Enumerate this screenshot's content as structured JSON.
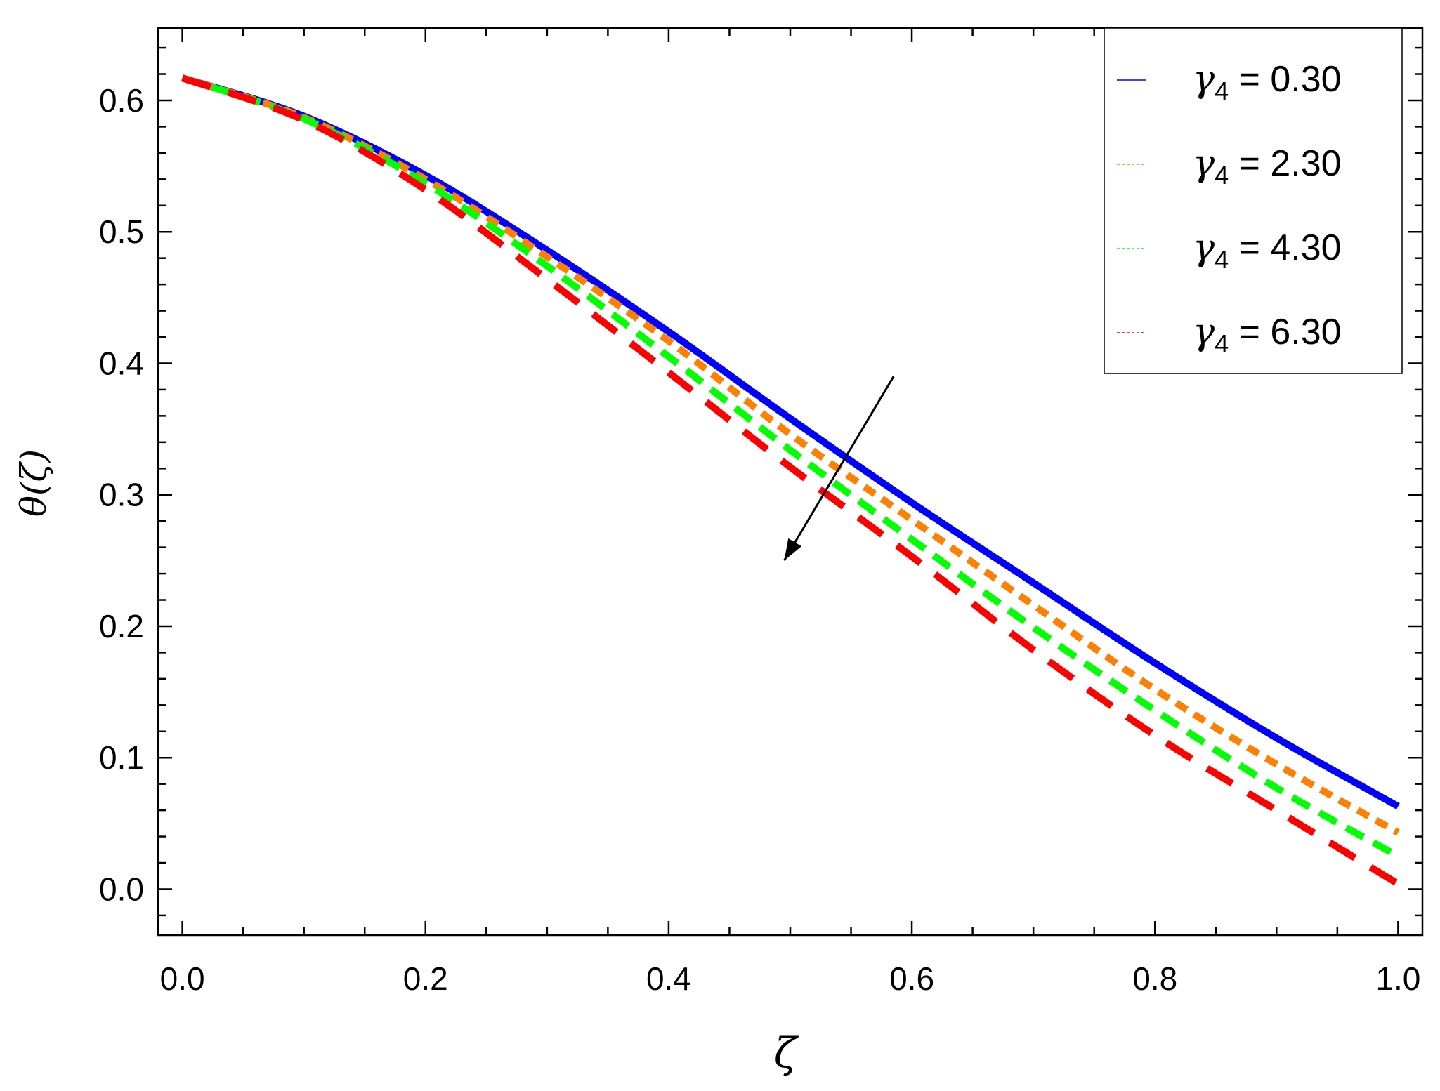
{
  "chart_data": {
    "type": "line",
    "xlabel": "ζ",
    "ylabel": "θ(ζ)",
    "xlim": [
      -0.02,
      1.02
    ],
    "ylim": [
      -0.035,
      0.655
    ],
    "xticks": [
      "0.0",
      "0.2",
      "0.4",
      "0.6",
      "0.8",
      "1.0"
    ],
    "yticks": [
      "0.0",
      "0.1",
      "0.2",
      "0.3",
      "0.4",
      "0.5",
      "0.6"
    ],
    "grid": false,
    "legend_position": "top-right",
    "x": [
      0.0,
      0.1,
      0.2,
      0.3,
      0.4,
      0.5,
      0.6,
      0.7,
      0.8,
      0.9,
      1.0
    ],
    "series": [
      {
        "name_main": "γ",
        "name_sub": "4",
        "name_rest": " = 0.30",
        "color": "#0000ff",
        "style": "solid",
        "values": [
          0.617,
          0.588,
          0.543,
          0.486,
          0.424,
          0.358,
          0.294,
          0.233,
          0.172,
          0.115,
          0.063
        ]
      },
      {
        "name_main": "γ",
        "name_sub": "4",
        "name_rest": " = 2.30",
        "color": "#ff8000",
        "style": "dotted",
        "values": [
          0.617,
          0.587,
          0.54,
          0.481,
          0.417,
          0.346,
          0.281,
          0.216,
          0.152,
          0.095,
          0.043
        ]
      },
      {
        "name_main": "γ",
        "name_sub": "4",
        "name_rest": " = 4.30",
        "color": "#00ff00",
        "style": "dashed-short",
        "values": [
          0.617,
          0.586,
          0.537,
          0.474,
          0.405,
          0.334,
          0.266,
          0.199,
          0.136,
          0.077,
          0.025
        ]
      },
      {
        "name_main": "γ",
        "name_sub": "4",
        "name_rest": " = 6.30",
        "color": "#ff0000",
        "style": "dashed-long",
        "values": [
          0.617,
          0.585,
          0.532,
          0.464,
          0.393,
          0.321,
          0.253,
          0.182,
          0.117,
          0.06,
          0.004
        ]
      }
    ],
    "annotation": {
      "type": "arrow",
      "from": [
        0.585,
        0.39
      ],
      "to": [
        0.495,
        0.25
      ]
    }
  }
}
